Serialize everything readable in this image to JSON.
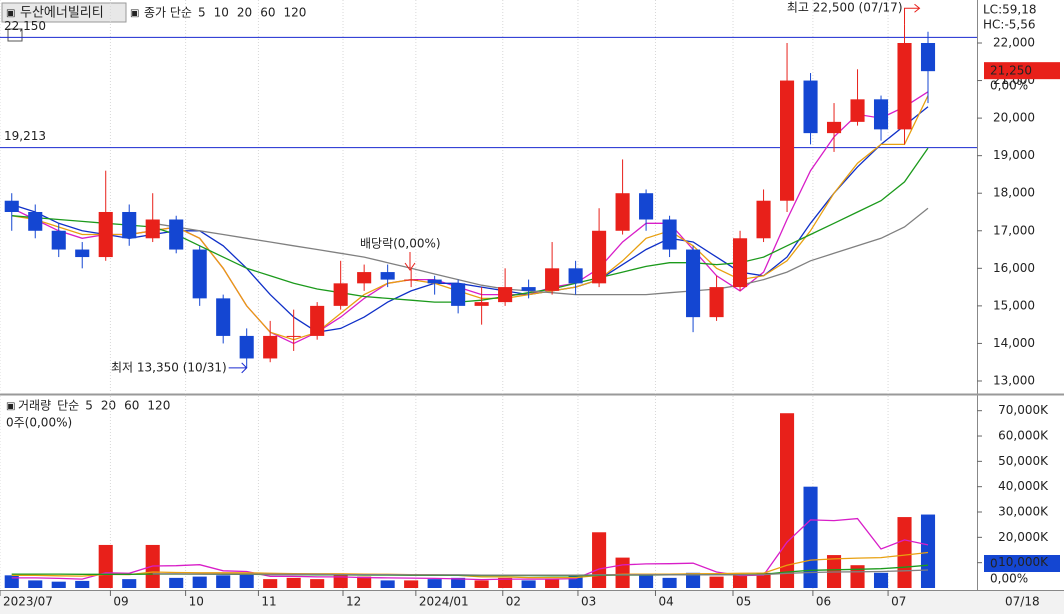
{
  "chart_data": [
    {
      "type": "candlestick",
      "title": "두산에너빌리티",
      "legend_label": "종가 단순",
      "xlim": [
        -0.5,
        41
      ],
      "xticks": [
        {
          "value": -0.5,
          "label": "2023/07"
        },
        {
          "value": 4.2,
          "label": "09"
        },
        {
          "value": 7.4,
          "label": "10"
        },
        {
          "value": 10.5,
          "label": "11"
        },
        {
          "value": 14.1,
          "label": "12"
        },
        {
          "value": 17.2,
          "label": "2024/01"
        },
        {
          "value": 20.9,
          "label": "02"
        },
        {
          "value": 24.1,
          "label": "03"
        },
        {
          "value": 27.4,
          "label": "04"
        },
        {
          "value": 30.7,
          "label": "05"
        },
        {
          "value": 34.1,
          "label": "06"
        },
        {
          "value": 37.3,
          "label": "07"
        }
      ],
      "last_date": "07/18",
      "ylim": [
        12680,
        23145
      ],
      "yticks": [
        {
          "value": 13000,
          "label": "13,000"
        },
        {
          "value": 14000,
          "label": "14,000"
        },
        {
          "value": 15000,
          "label": "15,000"
        },
        {
          "value": 16000,
          "label": "16,000"
        },
        {
          "value": 17000,
          "label": "17,000"
        },
        {
          "value": 18000,
          "label": "18,000"
        },
        {
          "value": 19000,
          "label": "19,000"
        },
        {
          "value": 20000,
          "label": "20,000"
        },
        {
          "value": 21000,
          "label": "21,000"
        },
        {
          "value": 22000,
          "label": "22,000"
        }
      ],
      "up_color": "#e8201a",
      "down_color": "#1446d2",
      "open": [
        17800,
        17500,
        17000,
        16500,
        16300,
        17500,
        16800,
        17300,
        16500,
        15200,
        14200,
        13600,
        14200,
        14200,
        15000,
        15600,
        15900,
        15700,
        15700,
        15600,
        15000,
        15100,
        15500,
        15400,
        16000,
        15600,
        17000,
        18000,
        17300,
        16500,
        14700,
        15500,
        16800,
        17800,
        21000,
        19600,
        19900,
        20500,
        19700,
        22000
      ],
      "high": [
        18000,
        17700,
        17200,
        16700,
        18600,
        17700,
        18000,
        17400,
        16600,
        15300,
        14400,
        14600,
        14900,
        15100,
        16200,
        16100,
        16100,
        16000,
        15800,
        15700,
        15500,
        16000,
        15700,
        16700,
        16200,
        17600,
        18900,
        18100,
        17400,
        16600,
        15800,
        17000,
        18100,
        22000,
        21200,
        20400,
        21300,
        20600,
        22500,
        22300
      ],
      "low": [
        17000,
        16800,
        16300,
        16000,
        16200,
        16600,
        16700,
        16400,
        15000,
        14000,
        13350,
        13500,
        13800,
        14100,
        14900,
        15400,
        15500,
        15500,
        15300,
        14800,
        14500,
        15000,
        15200,
        15300,
        15300,
        15500,
        16900,
        17000,
        16300,
        14300,
        14600,
        15400,
        16700,
        17500,
        19300,
        19100,
        19800,
        19400,
        19300,
        20400
      ],
      "close": [
        17500,
        17000,
        16500,
        16300,
        17500,
        16800,
        17300,
        16500,
        15200,
        14200,
        13600,
        14200,
        14200,
        15000,
        15600,
        15900,
        15700,
        15700,
        15600,
        15000,
        15100,
        15500,
        15400,
        16000,
        15600,
        17000,
        18000,
        17300,
        16500,
        14700,
        15500,
        16800,
        17800,
        21000,
        19600,
        19900,
        20500,
        19700,
        22000,
        21250
      ],
      "series": [
        {
          "name": "5",
          "color": "#d81ec8",
          "values": [
            17600,
            17300,
            17000,
            16800,
            16900,
            16900,
            17000,
            17100,
            16800,
            16000,
            15000,
            14300,
            14000,
            14300,
            14700,
            15200,
            15600,
            15700,
            15700,
            15500,
            15300,
            15300,
            15300,
            15500,
            15600,
            16000,
            16700,
            17200,
            17200,
            16500,
            15800,
            15400,
            15900,
            17300,
            18600,
            19500,
            20100,
            20000,
            20300,
            20700
          ]
        },
        {
          "name": "10",
          "color": "#1030c8",
          "values": [
            17700,
            17500,
            17200,
            17000,
            16900,
            16800,
            16900,
            17000,
            17000,
            16600,
            16000,
            15300,
            14700,
            14300,
            14400,
            14700,
            15100,
            15400,
            15600,
            15600,
            15500,
            15400,
            15300,
            15400,
            15500,
            15700,
            16100,
            16500,
            16800,
            16700,
            16300,
            15900,
            15800,
            16300,
            17200,
            18000,
            18700,
            19300,
            19800,
            20300
          ]
        },
        {
          "name": "20",
          "color": "#e8a010",
          "values": [
            17400,
            17300,
            17100,
            16900,
            16900,
            16900,
            17000,
            17100,
            16800,
            16000,
            15000,
            14300,
            14100,
            14300,
            14800,
            15300,
            15600,
            15700,
            15600,
            15400,
            15200,
            15200,
            15300,
            15400,
            15500,
            15700,
            16200,
            16800,
            17000,
            16600,
            16000,
            15700,
            15800,
            16200,
            17000,
            18000,
            18800,
            19300,
            19300,
            20600
          ]
        },
        {
          "name": "60",
          "color": "#1c9a1c",
          "values": [
            17400,
            17350,
            17300,
            17250,
            17200,
            17150,
            17100,
            16900,
            16600,
            16300,
            16000,
            15800,
            15600,
            15450,
            15350,
            15250,
            15200,
            15150,
            15100,
            15100,
            15150,
            15250,
            15350,
            15450,
            15600,
            15750,
            15900,
            16050,
            16150,
            16150,
            16100,
            16150,
            16300,
            16600,
            16900,
            17200,
            17500,
            17800,
            18300,
            19200
          ]
        },
        {
          "name": "120",
          "color": "#808080",
          "values": [
            null,
            null,
            null,
            null,
            null,
            null,
            17200,
            17100,
            17000,
            16900,
            16800,
            16700,
            16600,
            16500,
            16400,
            16300,
            16150,
            16000,
            15850,
            15700,
            15550,
            15450,
            15400,
            15350,
            15300,
            15300,
            15300,
            15300,
            15350,
            15400,
            15450,
            15550,
            15700,
            15900,
            16200,
            16400,
            16600,
            16800,
            17100,
            17600
          ]
        }
      ],
      "ref_lines": [
        {
          "value": 22150,
          "label": "22,150"
        },
        {
          "value": 19213,
          "label": "19,213"
        }
      ],
      "annotations": {
        "high": "최고 22,500 (07/17)",
        "low": "최저 13,350 (10/31)",
        "dividend": "배당락(0,00%)"
      },
      "last": {
        "value": 21250,
        "label": "21,250"
      },
      "change": "0,00%",
      "lc": "LC:59,18",
      "hc": "HC:-5,56"
    },
    {
      "type": "bar",
      "title": "거래량",
      "legend_label": "단순",
      "zero_label": "0주(0,00%)",
      "ylim": [
        0,
        75800
      ],
      "yticks": [
        {
          "value": 10000,
          "label": "10,000K"
        },
        {
          "value": 20000,
          "label": "20,000K"
        },
        {
          "value": 30000,
          "label": "30,000K"
        },
        {
          "value": 40000,
          "label": "40,000K"
        },
        {
          "value": 50000,
          "label": "50,000K"
        },
        {
          "value": 60000,
          "label": "60,000K"
        },
        {
          "value": 70000,
          "label": "70,000K"
        }
      ],
      "values": [
        5000,
        3000,
        2500,
        2800,
        17000,
        3500,
        17000,
        4000,
        4500,
        5000,
        6000,
        3500,
        4000,
        3500,
        5000,
        4500,
        3000,
        3000,
        3500,
        4000,
        3000,
        4000,
        3000,
        3500,
        5000,
        22000,
        12000,
        5000,
        4000,
        6000,
        4500,
        5000,
        6000,
        69000,
        40000,
        13000,
        9000,
        6000,
        28000,
        29000
      ],
      "series": [
        {
          "name": "5",
          "color": "#d81ec8",
          "values": [
            4000,
            4000,
            3800,
            3500,
            6000,
            5800,
            8700,
            8800,
            9200,
            6800,
            6500,
            4600,
            4600,
            4400,
            4400,
            4100,
            4000,
            3900,
            3800,
            3600,
            3300,
            3500,
            3500,
            3500,
            3700,
            7500,
            9100,
            9500,
            9600,
            9800,
            6300,
            4900,
            5100,
            18100,
            26900,
            26600,
            27400,
            15400,
            19000,
            17000
          ]
        },
        {
          "name": "20",
          "color": "#e8a010",
          "values": [
            5000,
            5000,
            4800,
            4700,
            5400,
            5300,
            6300,
            6100,
            6000,
            6000,
            6000,
            5800,
            5700,
            5600,
            5600,
            5500,
            5400,
            5300,
            5200,
            5000,
            4400,
            4400,
            4100,
            4100,
            4100,
            5000,
            5400,
            5500,
            5500,
            5600,
            5700,
            5800,
            5900,
            9000,
            11000,
            11500,
            11800,
            12000,
            13000,
            14000
          ]
        },
        {
          "name": "60",
          "color": "#1c9a1c",
          "values": [
            5500,
            5500,
            5500,
            5400,
            5400,
            5400,
            5500,
            5500,
            5500,
            5400,
            5400,
            5300,
            5300,
            5200,
            5200,
            5100,
            5100,
            5000,
            5000,
            5000,
            4900,
            4900,
            4900,
            4800,
            4800,
            5000,
            5100,
            5100,
            5200,
            5200,
            5300,
            5300,
            5400,
            6300,
            7000,
            7200,
            7400,
            7600,
            8200,
            9000
          ]
        },
        {
          "name": "120",
          "color": "#808080",
          "values": [
            null,
            null,
            null,
            null,
            null,
            null,
            5600,
            5600,
            5500,
            5500,
            5500,
            5400,
            5400,
            5400,
            5300,
            5300,
            5300,
            5200,
            5200,
            5200,
            5100,
            5100,
            5100,
            5100,
            5100,
            5200,
            5200,
            5200,
            5200,
            5200,
            5200,
            5200,
            5300,
            5800,
            6100,
            6300,
            6400,
            6500,
            6800,
            7100
          ]
        }
      ],
      "last_label": "0",
      "change": "0,00%"
    }
  ]
}
